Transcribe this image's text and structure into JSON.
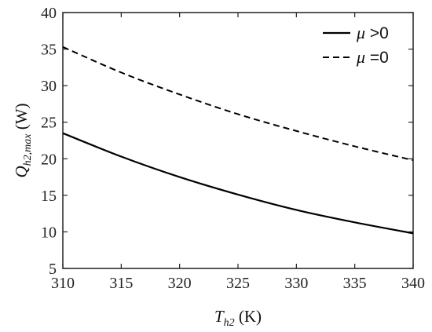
{
  "chart_data": {
    "type": "line",
    "x": [
      310,
      315,
      320,
      325,
      330,
      335,
      340
    ],
    "series": [
      {
        "name": "μ >0",
        "style": "solid",
        "values": [
          23.5,
          20.3,
          17.5,
          15.1,
          13.0,
          11.3,
          9.8
        ]
      },
      {
        "name": "μ =0",
        "style": "dashed",
        "values": [
          35.3,
          31.8,
          28.8,
          26.1,
          23.8,
          21.7,
          19.8
        ]
      }
    ],
    "xlim": [
      310,
      340
    ],
    "ylim": [
      5,
      40
    ],
    "xticks": [
      "310",
      "315",
      "320",
      "325",
      "330",
      "335",
      "340"
    ],
    "yticks": [
      "5",
      "10",
      "15",
      "20",
      "25",
      "30",
      "35",
      "40"
    ],
    "xlabel": {
      "main": "T",
      "sub": "h2",
      "unit": " (K)"
    },
    "ylabel": {
      "main": "Q",
      "sub": "h2,max",
      "unit": " (W)"
    },
    "legend": {
      "placement": "top-right",
      "entries": [
        {
          "symbol": "μ",
          "rest": " >0"
        },
        {
          "symbol": "μ",
          "rest": " =0"
        }
      ]
    },
    "grid": false,
    "colors": {
      "line": "#000000",
      "axis": "#222222"
    }
  }
}
